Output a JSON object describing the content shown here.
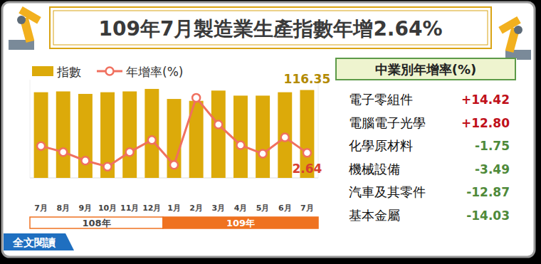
{
  "chart_data": {
    "type": "bar",
    "title": "109年7月製造業生產指數年增2.64%",
    "categories": [
      "7月",
      "8月",
      "9月",
      "10月",
      "11月",
      "12月",
      "1月",
      "2月",
      "3月",
      "4月",
      "5月",
      "6月",
      "7月"
    ],
    "groups": [
      {
        "label": "108年",
        "from": 0,
        "to": 5
      },
      {
        "label": "109年",
        "from": 6,
        "to": 12
      }
    ],
    "series": [
      {
        "name": "指數",
        "type": "bar",
        "color": "#dcaa0a",
        "values": [
          113.4,
          114.5,
          111.2,
          113.4,
          114.5,
          117.8,
          104.5,
          102.0,
          115.6,
          108.9,
          108.9,
          113.4,
          116.35
        ],
        "value_labels": [
          null,
          null,
          null,
          null,
          null,
          null,
          null,
          null,
          null,
          null,
          null,
          null,
          "116.35"
        ]
      },
      {
        "name": "年增率(%)",
        "type": "line",
        "axis": "y2",
        "color": "#f0705f",
        "marker": "circle",
        "values": [
          4.75,
          2.9,
          0.27,
          -1.57,
          2.9,
          6.59,
          -1.04,
          19.48,
          11.32,
          5.01,
          2.38,
          7.38,
          2.64
        ],
        "value_labels": [
          null,
          null,
          null,
          null,
          null,
          null,
          null,
          null,
          null,
          null,
          null,
          null,
          "2.64"
        ]
      }
    ],
    "ylim": [
      0,
      130
    ],
    "y2lim": [
      -5,
      25
    ],
    "tick_labels": false,
    "legend": "upper left",
    "grid": false
  },
  "industry_table": {
    "title": "中業別年增率(%)",
    "rows": [
      [
        "電子零組件",
        "+14.42"
      ],
      [
        "電腦電子光學",
        "+12.80"
      ],
      [
        "化學原材料",
        "-1.75"
      ],
      [
        "機械設備",
        "-3.49"
      ],
      [
        "汽車及其零件",
        "-12.87"
      ],
      [
        "基本金屬",
        "-14.03"
      ]
    ]
  },
  "link": "全文閱讀"
}
